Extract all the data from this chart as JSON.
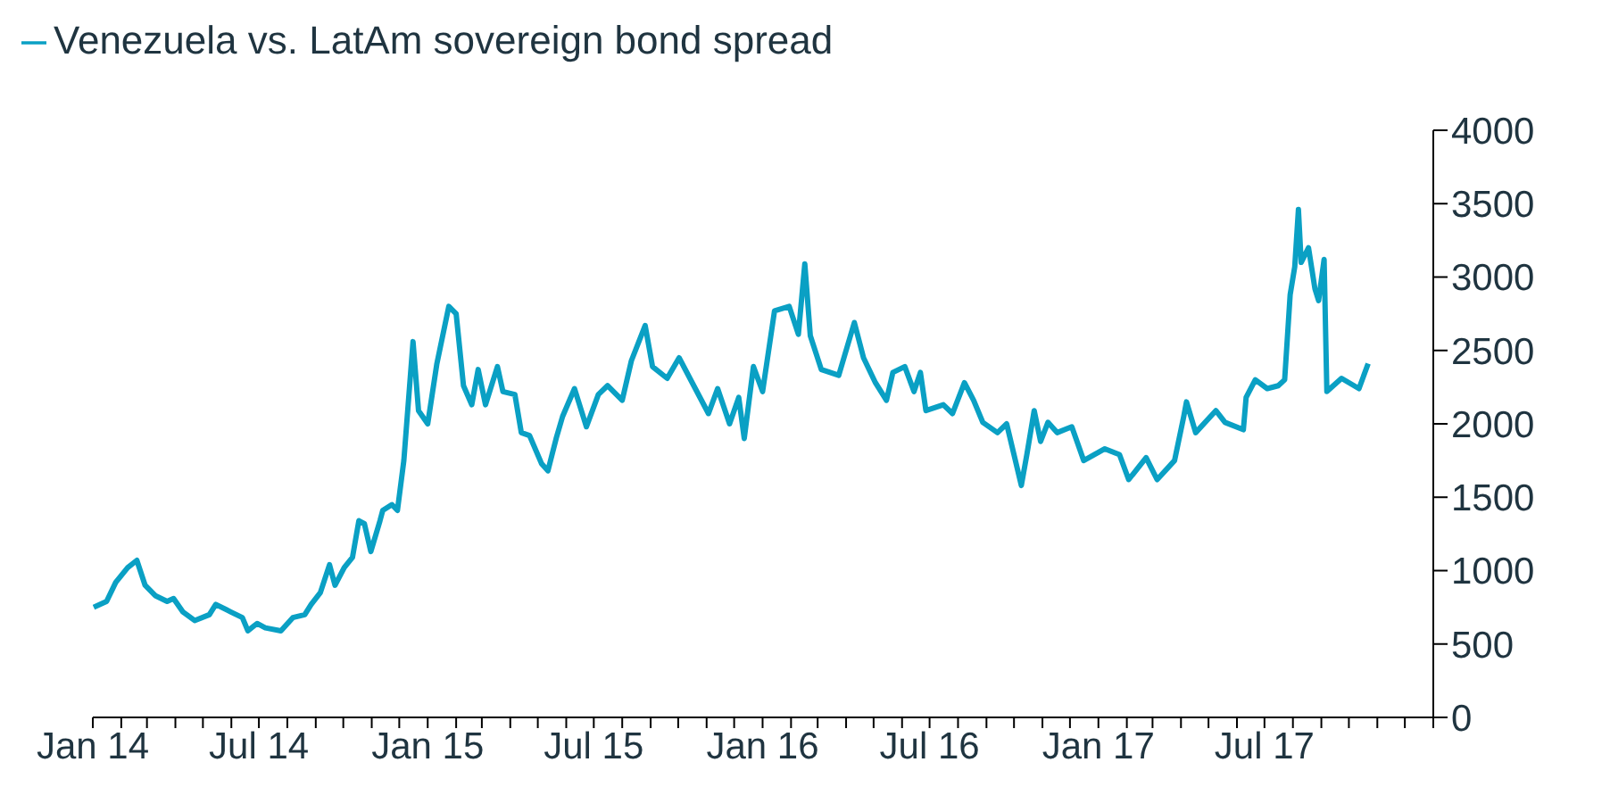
{
  "chart_data": {
    "type": "line",
    "legend": "top left",
    "grid": false,
    "marker": "none",
    "line_style": "solid",
    "xlim": [
      "2014-01-01",
      "2018-01-01"
    ],
    "xticks": [
      {
        "value": "2014-01-01",
        "label": "Jan 14"
      },
      {
        "value": "2014-02-01",
        "label": null
      },
      {
        "value": "2014-03-01",
        "label": null
      },
      {
        "value": "2014-04-01",
        "label": null
      },
      {
        "value": "2014-05-01",
        "label": null
      },
      {
        "value": "2014-06-01",
        "label": null
      },
      {
        "value": "2014-07-01",
        "label": "Jul 14"
      },
      {
        "value": "2014-08-01",
        "label": null
      },
      {
        "value": "2014-09-01",
        "label": null
      },
      {
        "value": "2014-10-01",
        "label": null
      },
      {
        "value": "2014-11-01",
        "label": null
      },
      {
        "value": "2014-12-01",
        "label": null
      },
      {
        "value": "2015-01-01",
        "label": "Jan 15"
      },
      {
        "value": "2015-02-01",
        "label": null
      },
      {
        "value": "2015-03-01",
        "label": null
      },
      {
        "value": "2015-04-01",
        "label": null
      },
      {
        "value": "2015-05-01",
        "label": null
      },
      {
        "value": "2015-06-01",
        "label": null
      },
      {
        "value": "2015-07-01",
        "label": "Jul 15"
      },
      {
        "value": "2015-08-01",
        "label": null
      },
      {
        "value": "2015-09-01",
        "label": null
      },
      {
        "value": "2015-10-01",
        "label": null
      },
      {
        "value": "2015-11-01",
        "label": null
      },
      {
        "value": "2015-12-01",
        "label": null
      },
      {
        "value": "2016-01-01",
        "label": "Jan 16"
      },
      {
        "value": "2016-02-01",
        "label": null
      },
      {
        "value": "2016-03-01",
        "label": null
      },
      {
        "value": "2016-04-01",
        "label": null
      },
      {
        "value": "2016-05-01",
        "label": null
      },
      {
        "value": "2016-06-01",
        "label": null
      },
      {
        "value": "2016-07-01",
        "label": "Jul 16"
      },
      {
        "value": "2016-08-01",
        "label": null
      },
      {
        "value": "2016-09-01",
        "label": null
      },
      {
        "value": "2016-10-01",
        "label": null
      },
      {
        "value": "2016-11-01",
        "label": null
      },
      {
        "value": "2016-12-01",
        "label": null
      },
      {
        "value": "2017-01-01",
        "label": "Jan 17"
      },
      {
        "value": "2017-02-01",
        "label": null
      },
      {
        "value": "2017-03-01",
        "label": null
      },
      {
        "value": "2017-04-01",
        "label": null
      },
      {
        "value": "2017-05-01",
        "label": null
      },
      {
        "value": "2017-06-01",
        "label": null
      },
      {
        "value": "2017-07-01",
        "label": "Jul 17"
      },
      {
        "value": "2017-08-01",
        "label": null
      },
      {
        "value": "2017-09-01",
        "label": null
      },
      {
        "value": "2017-10-01",
        "label": null
      },
      {
        "value": "2017-11-01",
        "label": null
      },
      {
        "value": "2017-12-01",
        "label": null
      },
      {
        "value": "2018-01-01",
        "label": null
      }
    ],
    "ylim": [
      0,
      4000
    ],
    "yticks": [
      0,
      500,
      1000,
      1500,
      2000,
      2500,
      3000,
      3500,
      4000
    ],
    "x": [
      "2014-01-02",
      "2014-01-16",
      "2014-01-26",
      "2014-02-08",
      "2014-02-18",
      "2014-02-27",
      "2014-03-10",
      "2014-03-23",
      "2014-03-30",
      "2014-04-09",
      "2014-04-22",
      "2014-05-08",
      "2014-05-15",
      "2014-05-31",
      "2014-06-13",
      "2014-06-19",
      "2014-06-29",
      "2014-07-08",
      "2014-07-25",
      "2014-08-07",
      "2014-08-20",
      "2014-08-27",
      "2014-09-06",
      "2014-09-16",
      "2014-09-22",
      "2014-10-02",
      "2014-10-11",
      "2014-10-18",
      "2014-10-24",
      "2014-10-31",
      "2014-11-10",
      "2014-11-13",
      "2014-11-23",
      "2014-11-29",
      "2014-12-06",
      "2014-12-16",
      "2014-12-22",
      "2015-01-01",
      "2015-01-11",
      "2015-01-24",
      "2015-02-01",
      "2015-02-09",
      "2015-02-18",
      "2015-02-25",
      "2015-03-05",
      "2015-03-18",
      "2015-03-24",
      "2015-04-06",
      "2015-04-13",
      "2015-04-22",
      "2015-05-05",
      "2015-05-12",
      "2015-05-21",
      "2015-05-28",
      "2015-06-10",
      "2015-06-23",
      "2015-07-06",
      "2015-07-16",
      "2015-08-01",
      "2015-08-11",
      "2015-08-26",
      "2015-09-03",
      "2015-09-19",
      "2015-10-02",
      "2015-10-18",
      "2015-11-03",
      "2015-11-13",
      "2015-11-26",
      "2015-12-06",
      "2015-12-12",
      "2015-12-22",
      "2016-01-01",
      "2016-01-14",
      "2016-01-30",
      "2016-02-09",
      "2016-02-16",
      "2016-02-22",
      "2016-03-05",
      "2016-03-24",
      "2016-04-10",
      "2016-04-20",
      "2016-05-03",
      "2016-05-15",
      "2016-05-22",
      "2016-06-04",
      "2016-06-14",
      "2016-06-21",
      "2016-06-27",
      "2016-07-16",
      "2016-07-26",
      "2016-08-08",
      "2016-08-18",
      "2016-08-28",
      "2016-09-13",
      "2016-09-23",
      "2016-10-09",
      "2016-10-15",
      "2016-10-23",
      "2016-10-30",
      "2016-11-07",
      "2016-11-17",
      "2016-12-03",
      "2016-12-16",
      "2017-01-08",
      "2017-01-24",
      "2017-02-03",
      "2017-02-22",
      "2017-03-06",
      "2017-03-25",
      "2017-04-04",
      "2017-04-07",
      "2017-04-17",
      "2017-05-09",
      "2017-05-19",
      "2017-06-08",
      "2017-06-11",
      "2017-06-21",
      "2017-07-04",
      "2017-07-16",
      "2017-07-23",
      "2017-07-29",
      "2017-08-03",
      "2017-08-07",
      "2017-08-10",
      "2017-08-18",
      "2017-08-25",
      "2017-08-29",
      "2017-09-04",
      "2017-09-07",
      "2017-09-23",
      "2017-10-12",
      "2017-10-22"
    ],
    "series": [
      {
        "name": "Venezuela vs. LatAm sovereign bond spread",
        "color": "#0aa0c4",
        "values": [
          750,
          790,
          920,
          1020,
          1070,
          900,
          830,
          790,
          810,
          720,
          660,
          700,
          770,
          720,
          680,
          590,
          640,
          610,
          590,
          680,
          700,
          770,
          850,
          1040,
          900,
          1020,
          1090,
          1340,
          1320,
          1130,
          1340,
          1410,
          1450,
          1410,
          1750,
          2560,
          2090,
          2000,
          2410,
          2800,
          2750,
          2260,
          2130,
          2370,
          2130,
          2390,
          2220,
          2200,
          1940,
          1920,
          1730,
          1680,
          1900,
          2050,
          2240,
          1980,
          2200,
          2260,
          2160,
          2430,
          2670,
          2390,
          2310,
          2450,
          2260,
          2070,
          2240,
          2000,
          2180,
          1900,
          2390,
          2220,
          2770,
          2800,
          2610,
          3090,
          2600,
          2370,
          2330,
          2690,
          2450,
          2280,
          2160,
          2350,
          2390,
          2220,
          2350,
          2090,
          2130,
          2070,
          2280,
          2160,
          2010,
          1940,
          2000,
          1580,
          1790,
          2090,
          1880,
          2010,
          1940,
          1980,
          1750,
          1830,
          1790,
          1620,
          1770,
          1620,
          1750,
          2050,
          2150,
          1940,
          2090,
          2010,
          1960,
          2180,
          2300,
          2240,
          2260,
          2300,
          2880,
          3070,
          3460,
          3100,
          3200,
          2920,
          2840,
          3120,
          2220,
          2310,
          2240,
          2410
        ]
      }
    ]
  }
}
